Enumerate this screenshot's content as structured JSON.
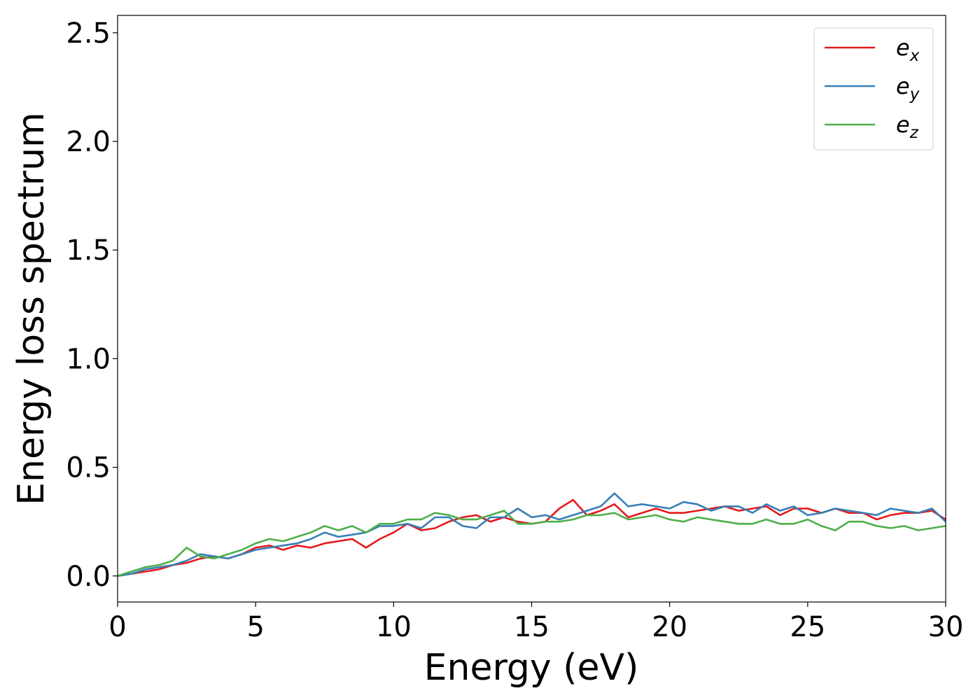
{
  "chart_data": {
    "type": "line",
    "xlabel": "Energy (eV)",
    "ylabel": "Energy loss spectrum",
    "xlim": [
      0,
      30
    ],
    "ylim": [
      -0.12,
      2.58
    ],
    "xticks": [
      0,
      5,
      10,
      15,
      20,
      25,
      30
    ],
    "yticks": [
      0.0,
      0.5,
      1.0,
      1.5,
      2.0,
      2.5
    ],
    "xtick_labels": [
      "0",
      "5",
      "10",
      "15",
      "20",
      "25",
      "30"
    ],
    "ytick_labels": [
      "0.0",
      "0.5",
      "1.0",
      "1.5",
      "2.0",
      "2.5"
    ],
    "grid": false,
    "legend_position": "top-right",
    "series": [
      {
        "name": "e",
        "subscript": "x",
        "color": "#e41a1c",
        "x": [
          0,
          0.5,
          1,
          1.5,
          2,
          2.5,
          3,
          3.5,
          4,
          4.5,
          5,
          5.5,
          6,
          6.5,
          7,
          7.5,
          8,
          8.5,
          9,
          9.5,
          10,
          10.5,
          11,
          11.5,
          12,
          12.5,
          13,
          13.5,
          14,
          14.5,
          15,
          15.5,
          16,
          16.5,
          17,
          17.5,
          18,
          18.5,
          19,
          19.5,
          20,
          20.5,
          21,
          21.5,
          22,
          22.5,
          23,
          23.5,
          24,
          24.5,
          25,
          25.5,
          26,
          26.5,
          27,
          27.5,
          28,
          28.5,
          29,
          29.5,
          30
        ],
        "y": [
          0.0,
          0.01,
          0.02,
          0.03,
          0.05,
          0.06,
          0.08,
          0.09,
          0.08,
          0.1,
          0.13,
          0.14,
          0.12,
          0.14,
          0.13,
          0.15,
          0.16,
          0.17,
          0.13,
          0.17,
          0.2,
          0.24,
          0.21,
          0.22,
          0.25,
          0.27,
          0.28,
          0.25,
          0.27,
          0.25,
          0.24,
          0.25,
          0.31,
          0.35,
          0.28,
          0.3,
          0.33,
          0.27,
          0.29,
          0.31,
          0.29,
          0.29,
          0.3,
          0.31,
          0.32,
          0.3,
          0.31,
          0.32,
          0.28,
          0.31,
          0.31,
          0.29,
          0.31,
          0.29,
          0.29,
          0.26,
          0.28,
          0.29,
          0.29,
          0.3,
          0.26
        ]
      },
      {
        "name": "e",
        "subscript": "y",
        "color": "#377eb8",
        "x": [
          0,
          0.5,
          1,
          1.5,
          2,
          2.5,
          3,
          3.5,
          4,
          4.5,
          5,
          5.5,
          6,
          6.5,
          7,
          7.5,
          8,
          8.5,
          9,
          9.5,
          10,
          10.5,
          11,
          11.5,
          12,
          12.5,
          13,
          13.5,
          14,
          14.5,
          15,
          15.5,
          16,
          16.5,
          17,
          17.5,
          18,
          18.5,
          19,
          19.5,
          20,
          20.5,
          21,
          21.5,
          22,
          22.5,
          23,
          23.5,
          24,
          24.5,
          25,
          25.5,
          26,
          26.5,
          27,
          27.5,
          28,
          28.5,
          29,
          29.5,
          30
        ],
        "y": [
          0.0,
          0.01,
          0.03,
          0.04,
          0.05,
          0.07,
          0.1,
          0.09,
          0.08,
          0.1,
          0.12,
          0.13,
          0.14,
          0.15,
          0.17,
          0.2,
          0.18,
          0.19,
          0.2,
          0.23,
          0.23,
          0.24,
          0.22,
          0.27,
          0.27,
          0.23,
          0.22,
          0.27,
          0.27,
          0.31,
          0.27,
          0.28,
          0.26,
          0.28,
          0.3,
          0.32,
          0.38,
          0.32,
          0.33,
          0.32,
          0.31,
          0.34,
          0.33,
          0.3,
          0.32,
          0.32,
          0.29,
          0.33,
          0.3,
          0.32,
          0.28,
          0.29,
          0.31,
          0.3,
          0.29,
          0.28,
          0.31,
          0.3,
          0.29,
          0.31,
          0.25
        ]
      },
      {
        "name": "e",
        "subscript": "z",
        "color": "#4daf4a",
        "x": [
          0,
          0.5,
          1,
          1.5,
          2,
          2.5,
          3,
          3.5,
          4,
          4.5,
          5,
          5.5,
          6,
          6.5,
          7,
          7.5,
          8,
          8.5,
          9,
          9.5,
          10,
          10.5,
          11,
          11.5,
          12,
          12.5,
          13,
          13.5,
          14,
          14.5,
          15,
          15.5,
          16,
          16.5,
          17,
          17.5,
          18,
          18.5,
          19,
          19.5,
          20,
          20.5,
          21,
          21.5,
          22,
          22.5,
          23,
          23.5,
          24,
          24.5,
          25,
          25.5,
          26,
          26.5,
          27,
          27.5,
          28,
          28.5,
          29,
          29.5,
          30
        ],
        "y": [
          0.0,
          0.02,
          0.04,
          0.05,
          0.07,
          0.13,
          0.09,
          0.08,
          0.1,
          0.12,
          0.15,
          0.17,
          0.16,
          0.18,
          0.2,
          0.23,
          0.21,
          0.23,
          0.2,
          0.24,
          0.24,
          0.26,
          0.26,
          0.29,
          0.28,
          0.26,
          0.26,
          0.28,
          0.3,
          0.24,
          0.24,
          0.25,
          0.25,
          0.26,
          0.28,
          0.28,
          0.29,
          0.26,
          0.27,
          0.28,
          0.26,
          0.25,
          0.27,
          0.26,
          0.25,
          0.24,
          0.24,
          0.26,
          0.24,
          0.24,
          0.26,
          0.23,
          0.21,
          0.25,
          0.25,
          0.23,
          0.22,
          0.23,
          0.21,
          0.22,
          0.23
        ]
      }
    ]
  }
}
